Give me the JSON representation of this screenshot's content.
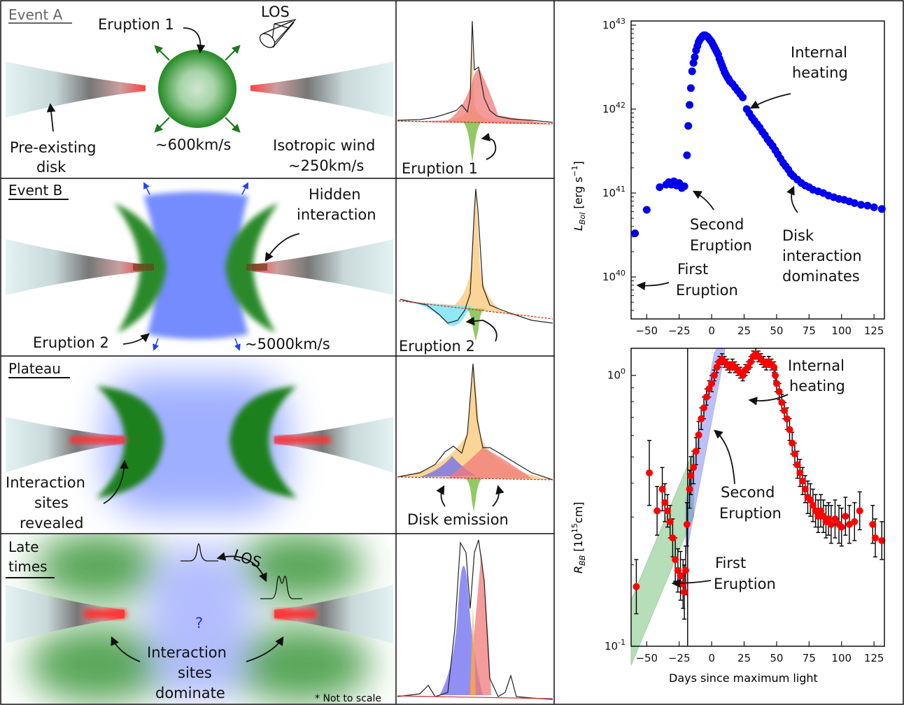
{
  "panels": {
    "event_a": {
      "title": "Event A",
      "eruption_label": "Eruption 1",
      "los_label": "LOS",
      "disk_label_1": "Pre-existing",
      "disk_label_2": "disk",
      "speed_label": "~600km/s",
      "wind_label_1": "Isotropic wind",
      "wind_label_2": "~250km/s",
      "spectrum_label": "Eruption 1"
    },
    "event_b": {
      "title": "Event B",
      "hidden_label_1": "Hidden",
      "hidden_label_2": "interaction",
      "eruption_label": "Eruption 2",
      "speed_label": "~5000km/s",
      "spectrum_label": "Eruption 2"
    },
    "plateau": {
      "title": "Plateau",
      "sites_label_1": "Interaction",
      "sites_label_2": "sites",
      "sites_label_3": "revealed",
      "spectrum_label": "Disk emission"
    },
    "late_times": {
      "title_1": "Late",
      "title_2": "times",
      "los_label": "LOS",
      "question": "?",
      "sites_label_1": "Interaction",
      "sites_label_2": "sites",
      "sites_label_3": "dominate",
      "note": "* Not to scale"
    }
  },
  "colors": {
    "green": "#1f7a1f",
    "blue": "#3355ff",
    "red": "#ff2a2a",
    "orange": "#f5b342",
    "salmon": "#f08080",
    "cyan": "#7fe3f5",
    "ann_arrow": "#111111"
  },
  "chart_data": [
    {
      "type": "scatter",
      "ylabel": "L_Bol [erg s^-1]",
      "ylabel_main": "L",
      "ylabel_sub": "Bol",
      "ylabel_unit": " [erg s",
      "ylabel_exp": "−1",
      "ylabel_close": "]",
      "xlabel": "",
      "yscale": "log",
      "xlim": [
        -62,
        133
      ],
      "ylim_exp": [
        39.5,
        43.05
      ],
      "xticks": [
        "-50",
        "-25",
        "0",
        "25",
        "50",
        "75",
        "100",
        "125"
      ],
      "yticks": [
        {
          "base": "10",
          "exp": "40",
          "e": 40
        },
        {
          "base": "10",
          "exp": "41",
          "e": 41
        },
        {
          "base": "10",
          "exp": "42",
          "e": 42
        },
        {
          "base": "10",
          "exp": "43",
          "e": 43
        }
      ],
      "series": [
        {
          "color": "#0000ee",
          "points": [
            [
              -59,
              40.52
            ],
            [
              -50,
              40.8
            ],
            [
              -40,
              41.07
            ],
            [
              -35,
              41.1
            ],
            [
              -33,
              41.13
            ],
            [
              -31,
              41.1
            ],
            [
              -29,
              41.14
            ],
            [
              -27,
              41.09
            ],
            [
              -25,
              41.12
            ],
            [
              -23,
              41.06
            ],
            [
              -21,
              41.08
            ],
            [
              -19,
              41.45
            ],
            [
              -18,
              41.8
            ],
            [
              -17,
              42.05
            ],
            [
              -16,
              42.25
            ],
            [
              -15,
              42.45
            ],
            [
              -14,
              42.55
            ],
            [
              -13,
              42.62
            ],
            [
              -12,
              42.7
            ],
            [
              -11,
              42.75
            ],
            [
              -10,
              42.8
            ],
            [
              -9,
              42.83
            ],
            [
              -8,
              42.85
            ],
            [
              -7,
              42.87
            ],
            [
              -6,
              42.88
            ],
            [
              -5,
              42.88
            ],
            [
              -4,
              42.87
            ],
            [
              -3,
              42.86
            ],
            [
              -2,
              42.84
            ],
            [
              -1,
              42.82
            ],
            [
              0,
              42.8
            ],
            [
              1,
              42.77
            ],
            [
              2,
              42.74
            ],
            [
              3,
              42.71
            ],
            [
              4,
              42.68
            ],
            [
              5,
              42.65
            ],
            [
              6,
              42.6
            ],
            [
              7,
              42.56
            ],
            [
              8,
              42.52
            ],
            [
              9,
              42.48
            ],
            [
              10,
              42.44
            ],
            [
              11,
              42.41
            ],
            [
              12,
              42.38
            ],
            [
              13,
              42.36
            ],
            [
              14,
              42.33
            ],
            [
              16,
              42.3
            ],
            [
              18,
              42.26
            ],
            [
              20,
              42.22
            ],
            [
              22,
              42.18
            ],
            [
              24,
              42.14
            ],
            [
              27,
              42.0
            ],
            [
              29,
              41.95
            ],
            [
              31,
              41.9
            ],
            [
              33,
              41.86
            ],
            [
              35,
              41.82
            ],
            [
              37,
              41.78
            ],
            [
              39,
              41.73
            ],
            [
              41,
              41.69
            ],
            [
              43,
              41.64
            ],
            [
              45,
              41.6
            ],
            [
              47,
              41.56
            ],
            [
              49,
              41.51
            ],
            [
              51,
              41.46
            ],
            [
              53,
              41.41
            ],
            [
              55,
              41.36
            ],
            [
              57,
              41.32
            ],
            [
              59,
              41.28
            ],
            [
              61,
              41.23
            ],
            [
              63,
              41.2
            ],
            [
              66,
              41.16
            ],
            [
              69,
              41.12
            ],
            [
              72,
              41.09
            ],
            [
              75,
              41.07
            ],
            [
              78,
              41.04
            ],
            [
              82,
              41.02
            ],
            [
              86,
              41.0
            ],
            [
              90,
              40.97
            ],
            [
              94,
              40.95
            ],
            [
              98,
              40.93
            ],
            [
              102,
              40.92
            ],
            [
              106,
              40.9
            ],
            [
              110,
              40.88
            ],
            [
              115,
              40.86
            ],
            [
              120,
              40.85
            ],
            [
              125,
              40.83
            ],
            [
              131,
              40.81
            ]
          ]
        }
      ],
      "annotations": {
        "internal_1": "Internal",
        "internal_2": "heating",
        "second_1": "Second",
        "second_2": "Eruption",
        "disk_1": "Disk",
        "disk_2": "interaction",
        "disk_3": "dominates",
        "first_1": "First",
        "first_2": "Eruption"
      }
    },
    {
      "type": "scatter",
      "ylabel": "R_BB [10^15 cm]",
      "ylabel_main": "R",
      "ylabel_sub": "BB",
      "ylabel_unit": " [10",
      "ylabel_exp": "15",
      "ylabel_close": "cm]",
      "xlabel": "Days since maximum light",
      "yscale": "log",
      "xlim": [
        -62,
        133
      ],
      "ylim_exp": [
        -1.0,
        0.1
      ],
      "xticks": [
        "-50",
        "-25",
        "0",
        "25",
        "50",
        "75",
        "100",
        "125"
      ],
      "yticks": [
        {
          "base": "10",
          "exp": "-1",
          "e": -1
        },
        {
          "base": "10",
          "exp": "0",
          "e": 0
        }
      ],
      "vline_x": -18.5,
      "series": [
        {
          "color": "#ff0000",
          "err_color": "#000000",
          "points": [
            [
              -58,
              -0.78,
              0.1
            ],
            [
              -48,
              -0.36,
              0.12
            ],
            [
              -42,
              -0.5,
              0.09
            ],
            [
              -38,
              -0.42,
              0.08
            ],
            [
              -36,
              -0.47,
              0.07
            ],
            [
              -34,
              -0.5,
              0.06
            ],
            [
              -32,
              -0.54,
              0.06
            ],
            [
              -30,
              -0.6,
              0.07
            ],
            [
              -28,
              -0.68,
              0.08
            ],
            [
              -26,
              -0.72,
              0.08
            ],
            [
              -24,
              -0.74,
              0.09
            ],
            [
              -22,
              -0.77,
              0.09
            ],
            [
              -21,
              -0.8,
              0.1
            ],
            [
              -20,
              -0.72,
              0.09
            ],
            [
              -19,
              -0.55,
              0.08
            ],
            [
              -17,
              -0.42,
              0.07
            ],
            [
              -16,
              -0.37,
              0.07
            ],
            [
              -14,
              -0.34,
              0.06
            ],
            [
              -12,
              -0.28,
              0.05
            ],
            [
              -10,
              -0.22,
              0.05
            ],
            [
              -8,
              -0.16,
              0.04
            ],
            [
              -6,
              -0.12,
              0.04
            ],
            [
              -4,
              -0.08,
              0.03
            ],
            [
              -2,
              -0.05,
              0.03
            ],
            [
              0,
              -0.03,
              0.03
            ],
            [
              2,
              0.0,
              0.02
            ],
            [
              4,
              0.03,
              0.02
            ],
            [
              6,
              0.05,
              0.02
            ],
            [
              8,
              0.06,
              0.02
            ],
            [
              10,
              0.05,
              0.02
            ],
            [
              12,
              0.04,
              0.02
            ],
            [
              14,
              0.03,
              0.02
            ],
            [
              16,
              0.04,
              0.02
            ],
            [
              18,
              0.03,
              0.02
            ],
            [
              20,
              0.02,
              0.02
            ],
            [
              22,
              0.01,
              0.02
            ],
            [
              24,
              0.0,
              0.02
            ],
            [
              26,
              0.02,
              0.02
            ],
            [
              28,
              0.03,
              0.02
            ],
            [
              30,
              0.05,
              0.02
            ],
            [
              32,
              0.07,
              0.02
            ],
            [
              34,
              0.08,
              0.02
            ],
            [
              36,
              0.07,
              0.02
            ],
            [
              38,
              0.06,
              0.02
            ],
            [
              40,
              0.05,
              0.02
            ],
            [
              42,
              0.04,
              0.02
            ],
            [
              44,
              0.05,
              0.02
            ],
            [
              46,
              0.04,
              0.02
            ],
            [
              48,
              0.03,
              0.02
            ],
            [
              49,
              0.0,
              0.02
            ],
            [
              50,
              -0.03,
              0.03
            ],
            [
              52,
              -0.06,
              0.03
            ],
            [
              54,
              -0.1,
              0.03
            ],
            [
              56,
              -0.13,
              0.03
            ],
            [
              58,
              -0.16,
              0.04
            ],
            [
              60,
              -0.2,
              0.04
            ],
            [
              62,
              -0.25,
              0.04
            ],
            [
              64,
              -0.29,
              0.04
            ],
            [
              66,
              -0.33,
              0.05
            ],
            [
              68,
              -0.36,
              0.05
            ],
            [
              70,
              -0.39,
              0.05
            ],
            [
              72,
              -0.42,
              0.05
            ],
            [
              74,
              -0.45,
              0.06
            ],
            [
              76,
              -0.46,
              0.06
            ],
            [
              78,
              -0.48,
              0.06
            ],
            [
              80,
              -0.5,
              0.06
            ],
            [
              82,
              -0.52,
              0.06
            ],
            [
              84,
              -0.5,
              0.06
            ],
            [
              86,
              -0.52,
              0.06
            ],
            [
              88,
              -0.54,
              0.06
            ],
            [
              90,
              -0.53,
              0.06
            ],
            [
              92,
              -0.55,
              0.07
            ],
            [
              95,
              -0.53,
              0.07
            ],
            [
              98,
              -0.55,
              0.07
            ],
            [
              100,
              -0.56,
              0.07
            ],
            [
              103,
              -0.52,
              0.07
            ],
            [
              106,
              -0.55,
              0.07
            ],
            [
              110,
              -0.54,
              0.07
            ],
            [
              114,
              -0.5,
              0.07
            ],
            [
              124,
              -0.55,
              0.07
            ],
            [
              126,
              -0.6,
              0.07
            ],
            [
              131,
              -0.61,
              0.07
            ]
          ]
        }
      ],
      "annotations": {
        "internal_1": "Internal",
        "internal_2": "heating",
        "second_1": "Second",
        "second_2": "Eruption",
        "first_1": "First",
        "first_2": "Eruption"
      }
    }
  ]
}
